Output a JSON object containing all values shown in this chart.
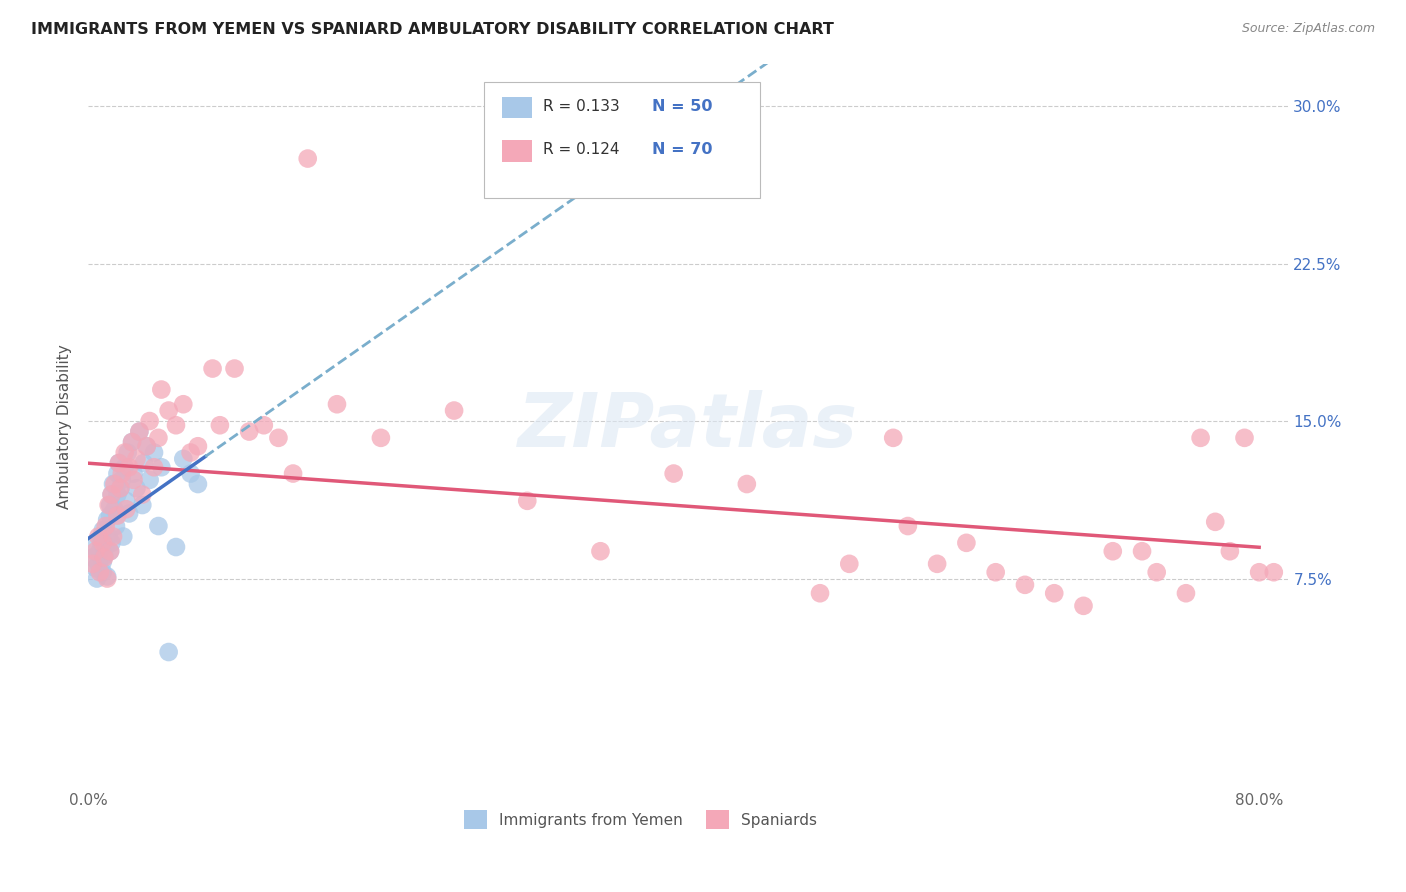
{
  "title": "IMMIGRANTS FROM YEMEN VS SPANIARD AMBULATORY DISABILITY CORRELATION CHART",
  "source": "Source: ZipAtlas.com",
  "ylabel": "Ambulatory Disability",
  "legend_blue_r": "R = 0.133",
  "legend_blue_n": "N = 50",
  "legend_pink_r": "R = 0.124",
  "legend_pink_n": "N = 70",
  "label_blue": "Immigrants from Yemen",
  "label_pink": "Spaniards",
  "color_blue": "#a8c8e8",
  "color_pink": "#f4a8b8",
  "line_blue_solid": "#4472c4",
  "line_blue_dash": "#7aaecc",
  "line_pink": "#e05878",
  "background_color": "#ffffff",
  "grid_color": "#cccccc",
  "xlim": [
    0.0,
    0.82
  ],
  "ylim": [
    -0.025,
    0.32
  ],
  "ytick_vals": [
    0.075,
    0.15,
    0.225,
    0.3
  ],
  "ytick_labels": [
    "7.5%",
    "15.0%",
    "22.5%",
    "30.0%"
  ],
  "blue_points_x": [
    0.003,
    0.004,
    0.005,
    0.006,
    0.007,
    0.008,
    0.009,
    0.009,
    0.01,
    0.01,
    0.01,
    0.011,
    0.012,
    0.013,
    0.013,
    0.014,
    0.015,
    0.015,
    0.015,
    0.016,
    0.016,
    0.017,
    0.018,
    0.019,
    0.02,
    0.02,
    0.021,
    0.022,
    0.023,
    0.024,
    0.025,
    0.026,
    0.027,
    0.028,
    0.03,
    0.031,
    0.033,
    0.035,
    0.037,
    0.038,
    0.04,
    0.042,
    0.045,
    0.048,
    0.05,
    0.055,
    0.06,
    0.065,
    0.07,
    0.075
  ],
  "blue_points_y": [
    0.085,
    0.09,
    0.08,
    0.075,
    0.082,
    0.088,
    0.092,
    0.095,
    0.078,
    0.083,
    0.098,
    0.086,
    0.091,
    0.103,
    0.076,
    0.095,
    0.105,
    0.11,
    0.088,
    0.115,
    0.092,
    0.12,
    0.108,
    0.1,
    0.125,
    0.115,
    0.13,
    0.118,
    0.122,
    0.095,
    0.128,
    0.112,
    0.135,
    0.106,
    0.14,
    0.125,
    0.118,
    0.145,
    0.11,
    0.13,
    0.138,
    0.122,
    0.135,
    0.1,
    0.128,
    0.04,
    0.09,
    0.132,
    0.125,
    0.12
  ],
  "pink_points_x": [
    0.003,
    0.005,
    0.007,
    0.008,
    0.01,
    0.011,
    0.012,
    0.013,
    0.014,
    0.015,
    0.016,
    0.017,
    0.018,
    0.02,
    0.021,
    0.022,
    0.023,
    0.025,
    0.026,
    0.028,
    0.03,
    0.031,
    0.033,
    0.035,
    0.037,
    0.04,
    0.042,
    0.045,
    0.048,
    0.05,
    0.055,
    0.06,
    0.065,
    0.07,
    0.085,
    0.09,
    0.1,
    0.11,
    0.12,
    0.13,
    0.14,
    0.15,
    0.17,
    0.2,
    0.25,
    0.3,
    0.35,
    0.4,
    0.45,
    0.5,
    0.52,
    0.55,
    0.56,
    0.58,
    0.6,
    0.62,
    0.64,
    0.66,
    0.68,
    0.7,
    0.72,
    0.73,
    0.75,
    0.76,
    0.77,
    0.78,
    0.79,
    0.8,
    0.81,
    0.075
  ],
  "pink_points_y": [
    0.082,
    0.088,
    0.095,
    0.078,
    0.092,
    0.085,
    0.1,
    0.075,
    0.11,
    0.088,
    0.115,
    0.095,
    0.12,
    0.105,
    0.13,
    0.118,
    0.125,
    0.135,
    0.108,
    0.128,
    0.14,
    0.122,
    0.132,
    0.145,
    0.115,
    0.138,
    0.15,
    0.128,
    0.142,
    0.165,
    0.155,
    0.148,
    0.158,
    0.135,
    0.175,
    0.148,
    0.175,
    0.145,
    0.148,
    0.142,
    0.125,
    0.275,
    0.158,
    0.142,
    0.155,
    0.112,
    0.088,
    0.125,
    0.12,
    0.068,
    0.082,
    0.142,
    0.1,
    0.082,
    0.092,
    0.078,
    0.072,
    0.068,
    0.062,
    0.088,
    0.088,
    0.078,
    0.068,
    0.142,
    0.102,
    0.088,
    0.142,
    0.078,
    0.078,
    0.138
  ]
}
